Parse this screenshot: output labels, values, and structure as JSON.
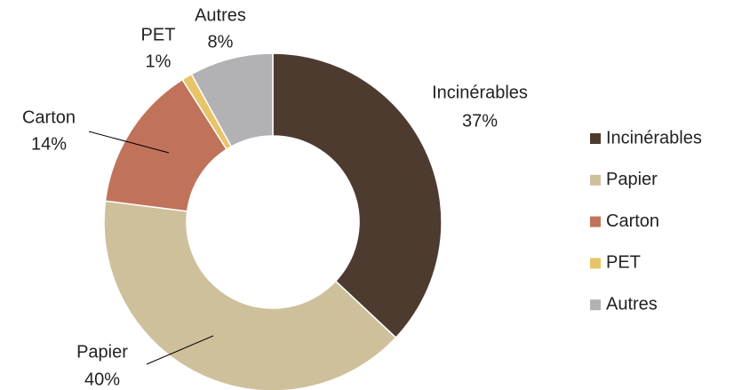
{
  "chart_data": {
    "type": "donut",
    "categories": [
      "Incinérables",
      "Papier",
      "Carton",
      "PET",
      "Autres"
    ],
    "values": [
      37,
      40,
      14,
      1,
      8
    ],
    "value_labels": [
      "37%",
      "40%",
      "14%",
      "1%",
      "8%"
    ],
    "colors": [
      "#4e3b30",
      "#cfc09c",
      "#c0735a",
      "#e8c468",
      "#b2b2b5"
    ],
    "legend": "right"
  }
}
